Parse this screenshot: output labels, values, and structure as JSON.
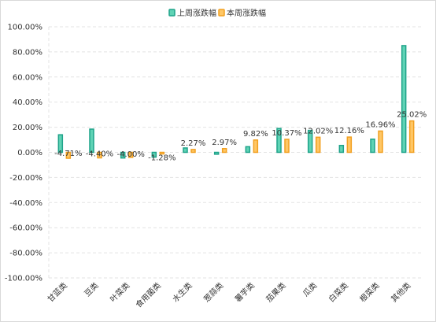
{
  "chart_data": {
    "type": "bar",
    "title": "",
    "xlabel": "",
    "ylabel": "",
    "categories": [
      "甘蓝类",
      "豆类",
      "叶菜类",
      "食用菌类",
      "水生类",
      "葱蒜类",
      "薯芋类",
      "茄果类",
      "瓜类",
      "白菜类",
      "根菜类",
      "其他类"
    ],
    "series": [
      {
        "name": "上周涨跌幅",
        "color": "#5fd3b5",
        "border_color": "#1fa38a",
        "values": [
          14.0,
          18.5,
          -4.5,
          -3.8,
          3.5,
          -1.5,
          4.5,
          19.0,
          17.5,
          5.5,
          10.5,
          85.0
        ]
      },
      {
        "name": "本周涨跌幅",
        "color": "#ffc766",
        "border_color": "#f2a020",
        "values": [
          -4.71,
          -4.4,
          -4.0,
          -1.28,
          2.27,
          2.97,
          9.82,
          10.37,
          12.02,
          12.16,
          16.96,
          25.02
        ]
      }
    ],
    "data_labels": [
      "-4.71%",
      "-4.40%",
      "-4.00%",
      "-1.28%",
      "2.27%",
      "2.97%",
      "9.82%",
      "10.37%",
      "12.02%",
      "12.16%",
      "16.96%",
      "25.02%"
    ],
    "ylim": [
      -100,
      100
    ],
    "y_ticks": [
      "-100.00%",
      "-80.00%",
      "-60.00%",
      "-40.00%",
      "-20.00%",
      "0.00%",
      "20.00%",
      "40.00%",
      "60.00%",
      "80.00%",
      "100.00%"
    ],
    "grid": true,
    "legend_position": "top-center"
  }
}
